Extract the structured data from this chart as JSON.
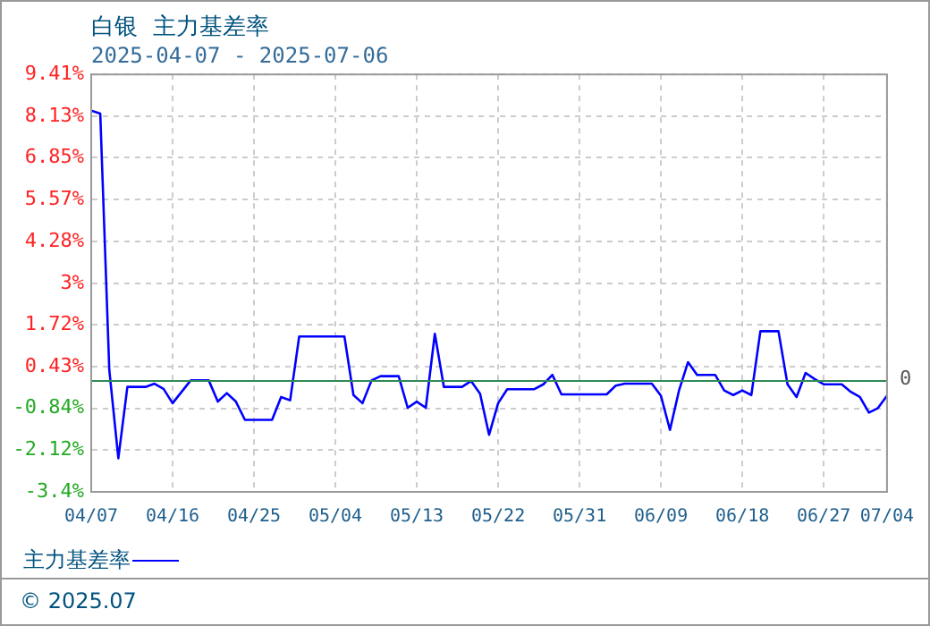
{
  "chart_data": {
    "type": "line",
    "title": "白银  主力基差率",
    "subtitle": "2025-04-07 - 2025-07-06",
    "x": [
      "2025-04-07",
      "2025-04-08",
      "2025-04-09",
      "2025-04-10",
      "2025-04-11",
      "2025-04-13",
      "2025-04-14",
      "2025-04-15",
      "2025-04-16",
      "2025-04-18",
      "2025-04-20",
      "2025-04-21",
      "2025-04-22",
      "2025-04-23",
      "2025-04-24",
      "2025-04-27",
      "2025-04-28",
      "2025-04-29",
      "2025-04-30",
      "2025-05-05",
      "2025-05-06",
      "2025-05-07",
      "2025-05-08",
      "2025-05-09",
      "2025-05-11",
      "2025-05-12",
      "2025-05-13",
      "2025-05-14",
      "2025-05-15",
      "2025-05-16",
      "2025-05-18",
      "2025-05-19",
      "2025-05-20",
      "2025-05-21",
      "2025-05-22",
      "2025-05-23",
      "2025-05-26",
      "2025-05-27",
      "2025-05-28",
      "2025-05-29",
      "2025-06-03",
      "2025-06-04",
      "2025-06-05",
      "2025-06-08",
      "2025-06-09",
      "2025-06-10",
      "2025-06-11",
      "2025-06-12",
      "2025-06-13",
      "2025-06-15",
      "2025-06-16",
      "2025-06-17",
      "2025-06-18",
      "2025-06-19",
      "2025-06-20",
      "2025-06-22",
      "2025-06-23",
      "2025-06-24",
      "2025-06-25",
      "2025-06-26",
      "2025-06-27",
      "2025-06-29",
      "2025-06-30",
      "2025-07-01",
      "2025-07-02",
      "2025-07-03",
      "2025-07-04"
    ],
    "series": [
      {
        "name": "主力基差率",
        "color": "#0000ff",
        "values": [
          8.3,
          8.21,
          0.34,
          -2.37,
          -0.18,
          -0.18,
          -0.08,
          -0.24,
          -0.68,
          0.02,
          0.02,
          -0.63,
          -0.37,
          -0.63,
          -1.19,
          -1.19,
          -0.49,
          -0.59,
          1.37,
          1.37,
          -0.43,
          -0.68,
          0.02,
          0.15,
          0.15,
          -0.82,
          -0.63,
          -0.82,
          1.45,
          -0.18,
          -0.18,
          0,
          -0.39,
          -1.65,
          -0.68,
          -0.25,
          -0.25,
          -0.1,
          0.19,
          -0.41,
          -0.41,
          -0.14,
          -0.08,
          -0.08,
          -0.45,
          -1.5,
          -0.29,
          0.58,
          0.19,
          0.19,
          -0.29,
          -0.43,
          -0.29,
          -0.43,
          1.53,
          1.53,
          -0.1,
          -0.49,
          0.25,
          0.06,
          -0.1,
          -0.1,
          -0.33,
          -0.49,
          -0.97,
          -0.83,
          -0.45
        ]
      }
    ],
    "xlim": [
      "2025-04-07",
      "2025-07-04"
    ],
    "xticks": [
      {
        "value": "2025-04-07",
        "label": "04/07"
      },
      {
        "value": "2025-04-16",
        "label": "04/16"
      },
      {
        "value": "2025-04-25",
        "label": "04/25"
      },
      {
        "value": "2025-05-04",
        "label": "05/04"
      },
      {
        "value": "2025-05-13",
        "label": "05/13"
      },
      {
        "value": "2025-05-22",
        "label": "05/22"
      },
      {
        "value": "2025-05-31",
        "label": "05/31"
      },
      {
        "value": "2025-06-09",
        "label": "06/09"
      },
      {
        "value": "2025-06-18",
        "label": "06/18"
      },
      {
        "value": "2025-06-27",
        "label": "06/27"
      },
      {
        "value": "2025-07-04",
        "label": "07/04"
      }
    ],
    "ylim": [
      -3.4,
      9.41
    ],
    "yticks": [
      {
        "value": -3.4,
        "label": "-3.4%"
      },
      {
        "value": -2.12,
        "label": "-2.12%"
      },
      {
        "value": -0.84,
        "label": "-0.84%"
      },
      {
        "value": 0.43,
        "label": "0.43%"
      },
      {
        "value": 1.72,
        "label": "1.72%"
      },
      {
        "value": 3,
        "label": "3%"
      },
      {
        "value": 4.28,
        "label": "4.28%"
      },
      {
        "value": 5.57,
        "label": "5.57%"
      },
      {
        "value": 6.85,
        "label": "6.85%"
      },
      {
        "value": 8.13,
        "label": "8.13%"
      },
      {
        "value": 9.41,
        "label": "9.41%"
      }
    ],
    "ref_lines": [
      {
        "axis": "y",
        "value": 0,
        "label": "0",
        "color": "#2e8b57"
      }
    ],
    "grid": true,
    "legend": "bottom",
    "marker": "none",
    "line_style": "solid",
    "annotations": [
      "© 2025.07"
    ]
  }
}
